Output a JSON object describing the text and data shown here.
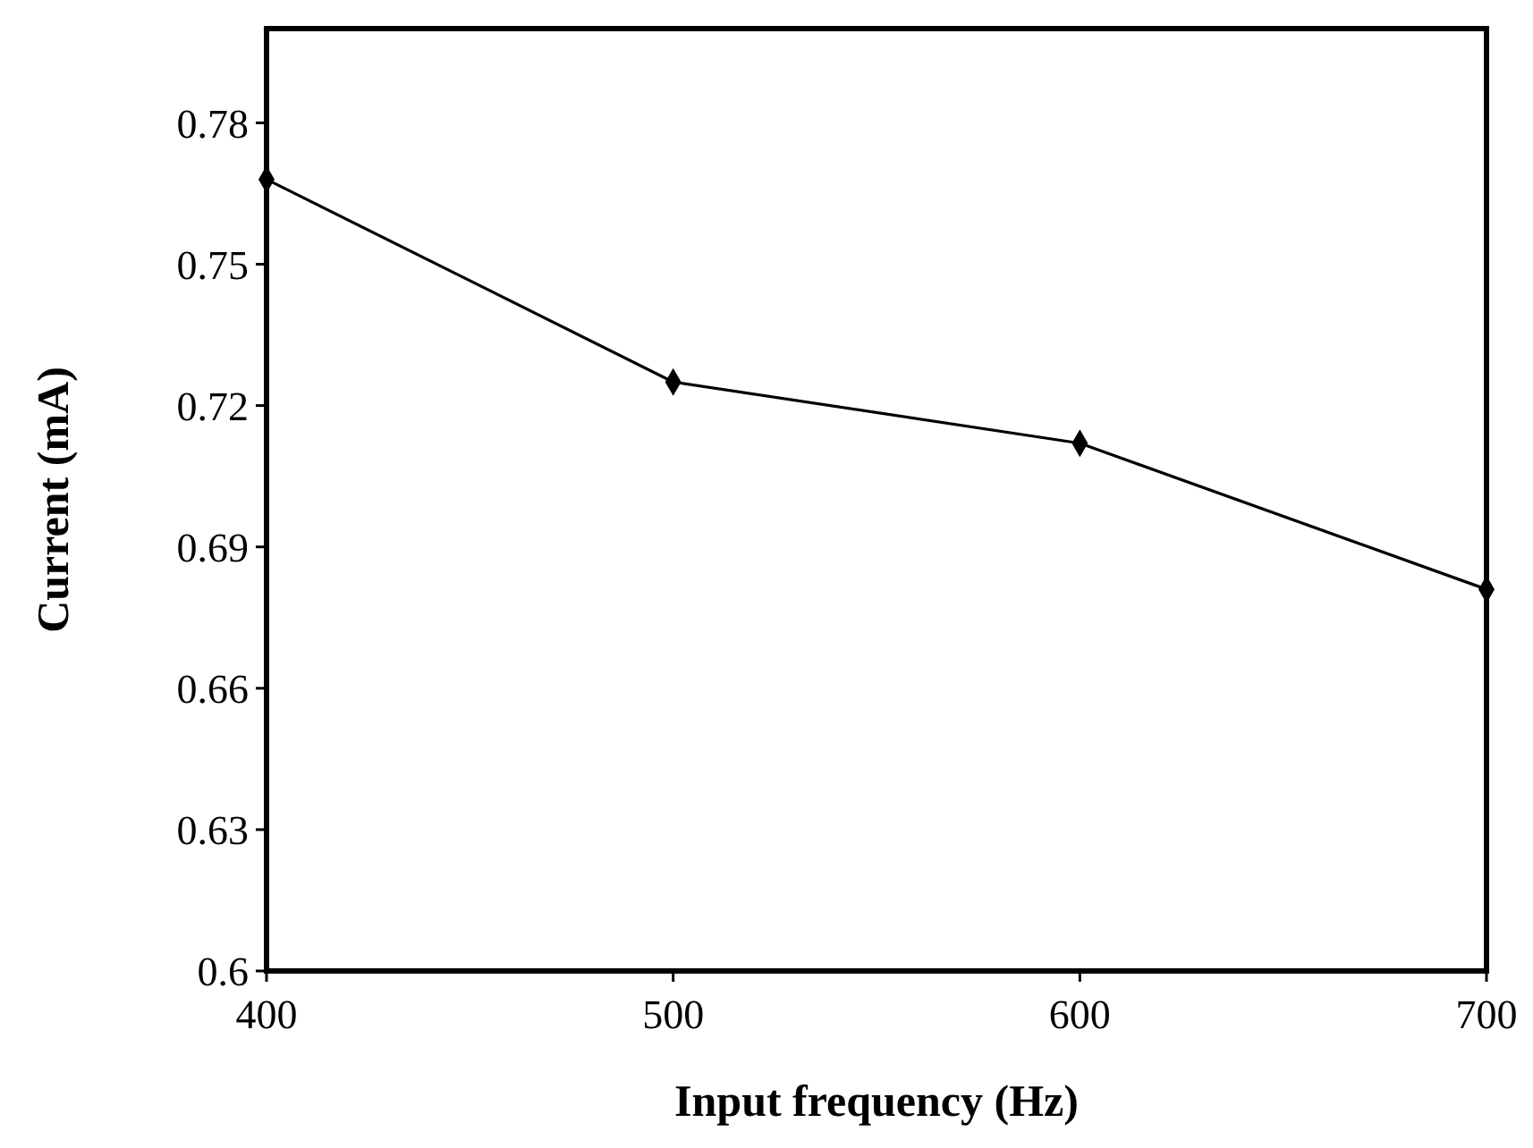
{
  "chart_data": {
    "type": "line",
    "xlabel": "Input frequency (Hz)",
    "ylabel": "Current (mA)",
    "x": [
      400,
      500,
      600,
      700
    ],
    "series": [
      {
        "color": "#000000",
        "values": [
          0.768,
          0.725,
          0.712,
          0.681
        ]
      }
    ],
    "xlim": [
      400,
      700
    ],
    "xticks": [
      400,
      500,
      600,
      700
    ],
    "ylim": [
      0.6,
      0.8
    ],
    "yticks": [
      {
        "value": 0.6,
        "label": "0.6"
      },
      0.63,
      0.66,
      0.69,
      0.72,
      0.75,
      0.78
    ],
    "marker": "diamond",
    "line_style": "solid"
  }
}
